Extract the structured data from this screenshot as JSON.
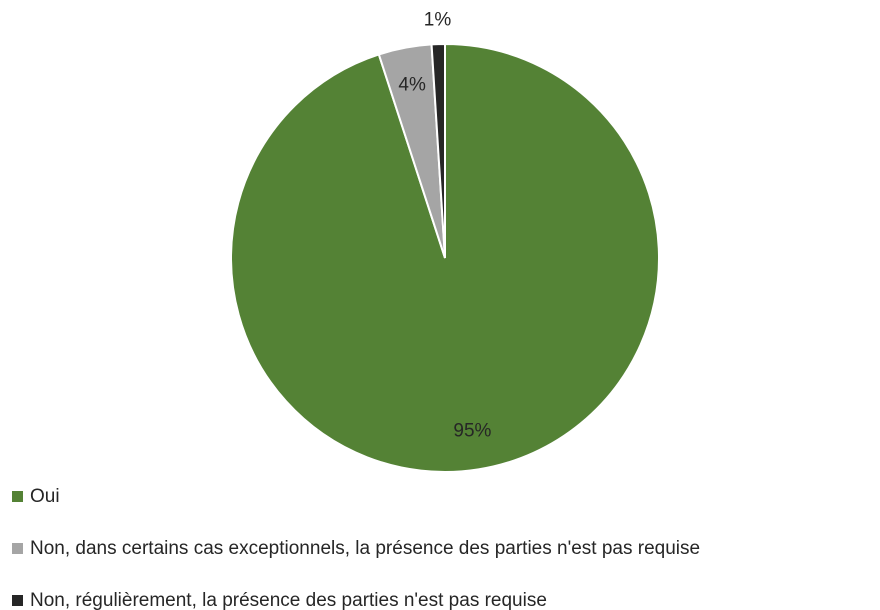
{
  "chart_data": {
    "type": "pie",
    "categories": [
      "Oui",
      "Non, dans certains cas exceptionnels, la présence des parties n'est pas requise",
      "Non, régulièrement, la présence des parties n'est pas requise"
    ],
    "values": [
      95,
      4,
      1
    ],
    "value_labels": [
      "95%",
      "4%",
      "1%"
    ],
    "colors": [
      "#548235",
      "#a5a5a5",
      "#262626"
    ],
    "legend": "bottom-left"
  }
}
